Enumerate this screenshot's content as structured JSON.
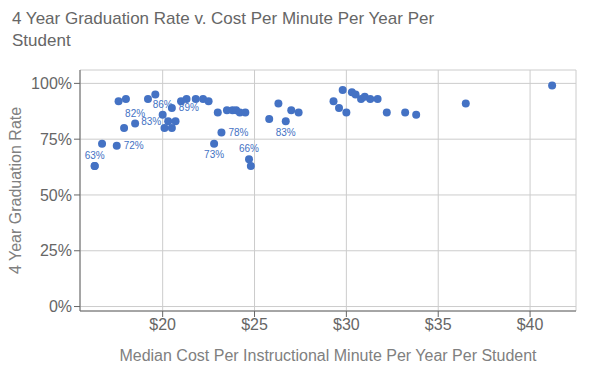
{
  "chart_data": {
    "type": "scatter",
    "title": "4 Year Graduation Rate v. Cost Per Minute Per Year Per\nStudent",
    "xlabel": "Median Cost Per Instructional Minute Per Year Per Student",
    "ylabel": "4 Year Graduation Rate",
    "color": "#4472C4",
    "xlim": [
      15.5,
      42.5
    ],
    "ylim": [
      -0.02,
      1.06
    ],
    "xticks": [
      {
        "value": 20,
        "label": "$20"
      },
      {
        "value": 25,
        "label": "$25"
      },
      {
        "value": 30,
        "label": "$30"
      },
      {
        "value": 35,
        "label": "$35"
      },
      {
        "value": 40,
        "label": "$40"
      }
    ],
    "yticks": [
      {
        "value": 0,
        "label": "0%"
      },
      {
        "value": 0.25,
        "label": "25%"
      },
      {
        "value": 0.5,
        "label": "50%"
      },
      {
        "value": 0.75,
        "label": "75%"
      },
      {
        "value": 1.0,
        "label": "100%"
      }
    ],
    "grid": true,
    "data_labels": true,
    "x": [
      16.3,
      16.7,
      16.3,
      17.5,
      17.9,
      17.6,
      18.0,
      18.5,
      19.2,
      19.6,
      20.0,
      20.3,
      20.5,
      20.7,
      20.1,
      20.5,
      21.0,
      21.3,
      21.8,
      22.2,
      22.5,
      22.8,
      23.0,
      23.2,
      23.5,
      23.8,
      24.0,
      24.2,
      24.5,
      24.7,
      24.8,
      25.8,
      26.3,
      26.7,
      27.0,
      27.4,
      29.3,
      29.6,
      29.8,
      30.0,
      30.3,
      30.5,
      30.8,
      31.0,
      31.3,
      31.7,
      32.2,
      33.2,
      33.8,
      36.5,
      41.2
    ],
    "values": [
      0.63,
      0.73,
      0.63,
      0.72,
      0.8,
      0.92,
      0.93,
      0.82,
      0.93,
      0.95,
      0.86,
      0.83,
      0.89,
      0.83,
      0.8,
      0.8,
      0.92,
      0.93,
      0.93,
      0.93,
      0.92,
      0.73,
      0.87,
      0.78,
      0.88,
      0.88,
      0.88,
      0.87,
      0.87,
      0.66,
      0.63,
      0.84,
      0.91,
      0.83,
      0.88,
      0.87,
      0.92,
      0.89,
      0.97,
      0.87,
      0.96,
      0.95,
      0.93,
      0.94,
      0.93,
      0.93,
      0.87,
      0.87,
      0.86,
      0.91,
      0.99
    ],
    "value_labels": [
      "63%",
      null,
      null,
      "72%",
      null,
      null,
      null,
      "82%",
      null,
      null,
      "86%",
      "83%",
      "89%",
      null,
      null,
      null,
      null,
      null,
      null,
      null,
      null,
      "73%",
      null,
      "78%",
      null,
      null,
      null,
      null,
      null,
      "66%",
      null,
      null,
      null,
      "83%",
      null,
      null,
      null,
      null,
      null,
      null,
      null,
      null,
      null,
      null,
      null,
      null,
      null,
      null,
      null,
      null,
      null
    ]
  }
}
